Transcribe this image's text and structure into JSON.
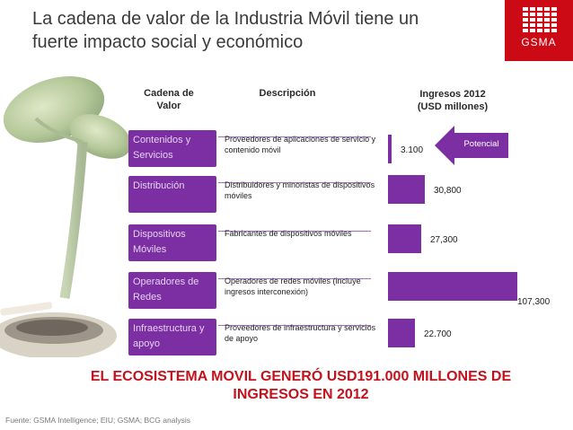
{
  "title": {
    "line1": "La cadena de valor de la Industria Móvil tiene un",
    "line2": "fuerte impacto social y económico"
  },
  "logo": {
    "text": "GSMA"
  },
  "headers": {
    "chain": "Cadena de Valor",
    "description": "Descripción",
    "revenue_line1": "Ingresos 2012",
    "revenue_line2": "(USD millones)"
  },
  "rows": [
    {
      "chain": "Contenidos y Servicios",
      "description": "Proveedores de aplicaciones de servicio y contenido móvil"
    },
    {
      "chain": "Distribución",
      "description": "Distribuidores y minoristas de dispositivos móviles"
    },
    {
      "chain": "Dispositivos Móviles",
      "description": "Fabricantes de dispositivos móviles"
    },
    {
      "chain": "Operadores de Redes",
      "description": "Operadores de redes móviles (incluye ingresos interconexión)"
    },
    {
      "chain": "Infraestructura y apoyo",
      "description": "Proveedores de infraestructura y servicios de apoyo"
    }
  ],
  "potencial_label": "Potencial",
  "chart_data": {
    "type": "bar",
    "orientation": "horizontal",
    "categories": [
      "Contenidos y Servicios",
      "Distribución",
      "Dispositivos Móviles",
      "Operadores de Redes",
      "Infraestructura y apoyo"
    ],
    "values": [
      3100,
      30800,
      27300,
      107300,
      22700
    ],
    "value_labels": [
      "3.100",
      "30,800",
      "27,300",
      "107,300",
      "22.700"
    ],
    "xlim": [
      0,
      107300
    ],
    "bar_color": "#7b2fa2"
  },
  "banner": {
    "line1": "EL ECOSISTEMA MOVIL GENERÓ USD191.000 MILLONES DE",
    "line2": "INGRESOS EN 2012"
  },
  "source": "Fuente: GSMA Intelligence; EIU; GSMA; BCG analysis",
  "colors": {
    "accent_red": "#cc0a16",
    "purple": "#7b2fa2",
    "banner_red": "#c4121c"
  }
}
